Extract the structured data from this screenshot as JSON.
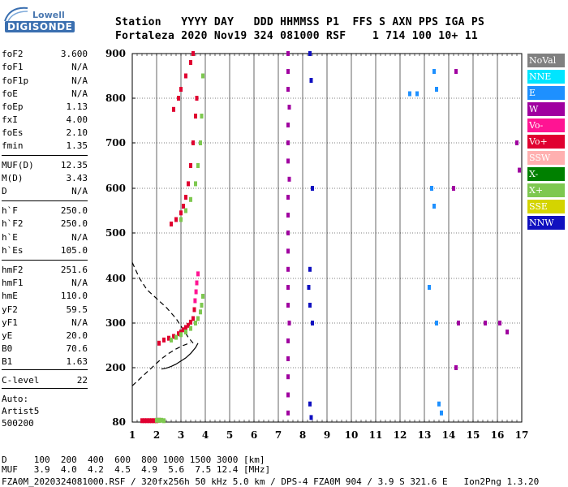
{
  "logo": {
    "line1": "Lowell",
    "line2": "DIGISONDE"
  },
  "header": {
    "line1": "Station   YYYY DAY   DDD HHMMSS P1  FFS S AXN PPS IGA PS",
    "line2": "Fortaleza 2020 Nov19 324 081000 RSF    1 714 100 10+ 11"
  },
  "params": [
    {
      "name": "foF2",
      "value": "3.600"
    },
    {
      "name": "foF1",
      "value": "N/A"
    },
    {
      "name": "foF1p",
      "value": "N/A"
    },
    {
      "name": "foE",
      "value": "N/A"
    },
    {
      "name": "foEp",
      "value": "1.13"
    },
    {
      "name": "fxI",
      "value": "4.00"
    },
    {
      "name": "foEs",
      "value": "2.10"
    },
    {
      "name": "fmin",
      "value": "1.35"
    },
    {
      "name": "MUF(D)",
      "value": "12.35"
    },
    {
      "name": "M(D)",
      "value": "3.43"
    },
    {
      "name": "D",
      "value": "N/A"
    },
    {
      "name": "h`F",
      "value": "250.0"
    },
    {
      "name": "h`F2",
      "value": "250.0"
    },
    {
      "name": "h`E",
      "value": "N/A"
    },
    {
      "name": "h`Es",
      "value": "105.0"
    },
    {
      "name": "hmF2",
      "value": "251.6"
    },
    {
      "name": "hmF1",
      "value": "N/A"
    },
    {
      "name": "hmE",
      "value": "110.0"
    },
    {
      "name": "yF2",
      "value": "59.5"
    },
    {
      "name": "yF1",
      "value": "N/A"
    },
    {
      "name": "yE",
      "value": "20.0"
    },
    {
      "name": "B0",
      "value": "70.6"
    },
    {
      "name": "B1",
      "value": "1.63"
    },
    {
      "name": "C-level",
      "value": "22"
    }
  ],
  "auto": {
    "line1": "Auto:",
    "line2": "Artist5",
    "line3": "500200"
  },
  "legend": [
    {
      "label": "NoVal",
      "color": "#808080"
    },
    {
      "label": "NNE",
      "color": "#00e5ff"
    },
    {
      "label": "E",
      "color": "#1e90ff"
    },
    {
      "label": "W",
      "color": "#a000a0"
    },
    {
      "label": "Vo-",
      "color": "#ff1493"
    },
    {
      "label": "Vo+",
      "color": "#e00030"
    },
    {
      "label": "SSW",
      "color": "#ffb0b0"
    },
    {
      "label": "X-",
      "color": "#008000"
    },
    {
      "label": "X+",
      "color": "#7ec850"
    },
    {
      "label": "SSE",
      "color": "#d4d400"
    },
    {
      "label": "NNW",
      "color": "#1010c0"
    }
  ],
  "footer": {
    "d_line": "D     100  200  400  600  800 1000 1500 3000 [km]",
    "muf_line": "MUF   3.9  4.0  4.2  4.5  4.9  5.6  7.5 12.4 [MHz]",
    "file_line": "FZA0M_2020324081000.RSF / 320fx256h 50 kHz 5.0 km / DPS-4 FZA0M 904 / 3.9 S 321.6 E   Ion2Png 1.3.20"
  },
  "chart_data": {
    "type": "scatter",
    "xlim": [
      1,
      17
    ],
    "ylim": [
      80,
      900
    ],
    "x_ticks": [
      1,
      2,
      3,
      4,
      5,
      6,
      7,
      8,
      9,
      10,
      11,
      12,
      13,
      14,
      15,
      16,
      17
    ],
    "y_ticks": [
      80,
      200,
      300,
      400,
      500,
      600,
      700,
      800,
      900
    ],
    "grid": true,
    "legend_placement": "right",
    "traces": [
      {
        "name": "Es",
        "color": "#e00030",
        "points": [
          [
            1.4,
            83
          ],
          [
            1.5,
            83
          ],
          [
            1.6,
            83
          ],
          [
            1.7,
            83
          ],
          [
            1.8,
            83
          ],
          [
            1.9,
            83
          ],
          [
            2.0,
            83
          ],
          [
            2.1,
            84
          ]
        ]
      },
      {
        "name": "Es",
        "color": "#7ec850",
        "points": [
          [
            2.0,
            84
          ],
          [
            2.1,
            84
          ],
          [
            2.2,
            84
          ],
          [
            2.3,
            83
          ]
        ]
      },
      {
        "name": "F2 O",
        "color": "#e00030",
        "points": [
          [
            2.1,
            255
          ],
          [
            2.3,
            262
          ],
          [
            2.5,
            266
          ],
          [
            2.7,
            270
          ],
          [
            2.9,
            276
          ],
          [
            3.0,
            280
          ],
          [
            3.1,
            285
          ],
          [
            3.2,
            290
          ],
          [
            3.3,
            295
          ],
          [
            3.4,
            302
          ],
          [
            3.5,
            310
          ],
          [
            3.55,
            330
          ]
        ]
      },
      {
        "name": "F2 O",
        "color": "#ff1493",
        "points": [
          [
            3.58,
            350
          ],
          [
            3.62,
            370
          ],
          [
            3.65,
            390
          ],
          [
            3.7,
            410
          ]
        ]
      },
      {
        "name": "F2 X",
        "color": "#7ec850",
        "points": [
          [
            2.6,
            262
          ],
          [
            2.8,
            268
          ],
          [
            3.0,
            274
          ],
          [
            3.2,
            280
          ],
          [
            3.4,
            288
          ],
          [
            3.6,
            300
          ],
          [
            3.7,
            310
          ],
          [
            3.8,
            325
          ],
          [
            3.85,
            340
          ],
          [
            3.9,
            360
          ]
        ]
      },
      {
        "name": "F2 2hop",
        "color": "#e00030",
        "points": [
          [
            2.6,
            520
          ],
          [
            2.8,
            530
          ],
          [
            3.0,
            545
          ],
          [
            3.1,
            560
          ],
          [
            3.2,
            580
          ],
          [
            3.3,
            610
          ],
          [
            3.4,
            650
          ],
          [
            3.5,
            700
          ],
          [
            3.6,
            760
          ],
          [
            3.65,
            800
          ]
        ]
      },
      {
        "name": "F2 2hop X",
        "color": "#7ec850",
        "points": [
          [
            3.0,
            530
          ],
          [
            3.2,
            550
          ],
          [
            3.4,
            575
          ],
          [
            3.6,
            610
          ],
          [
            3.7,
            650
          ],
          [
            3.8,
            700
          ],
          [
            3.85,
            760
          ],
          [
            3.9,
            850
          ]
        ]
      },
      {
        "name": "F2 3hop",
        "color": "#e00030",
        "points": [
          [
            2.7,
            775
          ],
          [
            2.9,
            800
          ],
          [
            3.0,
            820
          ],
          [
            3.2,
            850
          ],
          [
            3.4,
            880
          ],
          [
            3.5,
            900
          ]
        ]
      },
      {
        "name": "clutter",
        "color": "#a000a0",
        "points": [
          [
            7.4,
            900
          ],
          [
            7.4,
            860
          ],
          [
            7.4,
            820
          ],
          [
            7.45,
            780
          ],
          [
            7.4,
            740
          ],
          [
            7.4,
            700
          ],
          [
            7.4,
            660
          ],
          [
            7.45,
            620
          ],
          [
            7.4,
            580
          ],
          [
            7.4,
            540
          ],
          [
            7.4,
            500
          ],
          [
            7.4,
            460
          ],
          [
            7.4,
            420
          ],
          [
            7.4,
            380
          ],
          [
            7.4,
            340
          ],
          [
            7.45,
            300
          ],
          [
            7.4,
            260
          ],
          [
            7.4,
            220
          ],
          [
            7.4,
            180
          ],
          [
            7.4,
            140
          ],
          [
            7.4,
            100
          ]
        ]
      },
      {
        "name": "clutter",
        "color": "#1010c0",
        "points": [
          [
            8.3,
            900
          ],
          [
            8.35,
            840
          ],
          [
            8.4,
            600
          ],
          [
            8.3,
            420
          ],
          [
            8.25,
            380
          ],
          [
            8.3,
            340
          ],
          [
            8.4,
            300
          ],
          [
            8.3,
            120
          ],
          [
            8.35,
            90
          ]
        ]
      },
      {
        "name": "clutter",
        "color": "#1e90ff",
        "points": [
          [
            12.4,
            810
          ],
          [
            12.7,
            810
          ],
          [
            13.4,
            860
          ],
          [
            13.5,
            820
          ],
          [
            13.3,
            600
          ],
          [
            13.4,
            560
          ],
          [
            13.2,
            380
          ],
          [
            13.5,
            300
          ],
          [
            13.6,
            120
          ],
          [
            13.7,
            100
          ]
        ]
      },
      {
        "name": "clutter",
        "color": "#a000a0",
        "points": [
          [
            14.3,
            860
          ],
          [
            14.2,
            600
          ],
          [
            14.4,
            300
          ],
          [
            14.3,
            200
          ],
          [
            15.5,
            300
          ],
          [
            16.1,
            300
          ],
          [
            16.4,
            280
          ],
          [
            16.8,
            700
          ],
          [
            16.9,
            640
          ]
        ]
      }
    ],
    "profile": {
      "name": "electron density profile",
      "color": "#000000",
      "points": [
        [
          3.7,
          255
        ],
        [
          3.6,
          245
        ],
        [
          3.4,
          232
        ],
        [
          3.2,
          222
        ],
        [
          3.0,
          215
        ],
        [
          2.8,
          208
        ],
        [
          2.6,
          203
        ],
        [
          2.4,
          199
        ],
        [
          2.2,
          197
        ]
      ]
    },
    "model_curve": {
      "name": "model",
      "color": "#000000",
      "dash": true,
      "points": [
        [
          1.0,
          435
        ],
        [
          1.3,
          400
        ],
        [
          1.6,
          375
        ],
        [
          2.0,
          355
        ],
        [
          2.4,
          335
        ],
        [
          2.8,
          310
        ],
        [
          3.1,
          285
        ],
        [
          3.3,
          268
        ],
        [
          3.5,
          255
        ]
      ]
    },
    "model_curve_lower": {
      "name": "model lower",
      "color": "#000000",
      "dash": true,
      "points": [
        [
          1.0,
          160
        ],
        [
          1.3,
          175
        ],
        [
          1.6,
          190
        ],
        [
          1.9,
          205
        ],
        [
          2.2,
          220
        ],
        [
          2.5,
          232
        ],
        [
          2.8,
          242
        ],
        [
          3.1,
          250
        ],
        [
          3.4,
          256
        ]
      ]
    }
  }
}
